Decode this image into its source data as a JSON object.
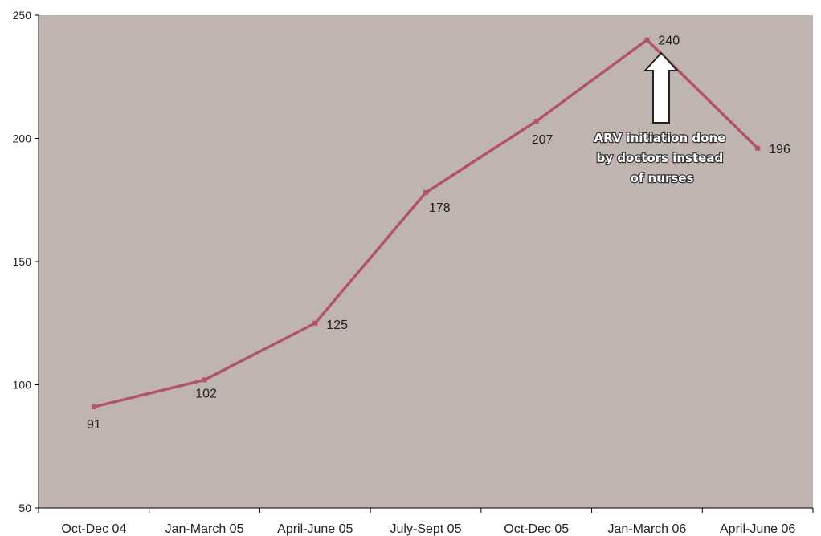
{
  "chart_data": {
    "type": "line",
    "categories": [
      "Oct-Dec 04",
      "Jan-March 05",
      "April-June 05",
      "July-Sept 05",
      "Oct-Dec 05",
      "Jan-March 06",
      "April-June 06"
    ],
    "series": [
      {
        "values": [
          91,
          102,
          125,
          178,
          207,
          240,
          196
        ],
        "color": "#b05566"
      }
    ],
    "ylim": [
      50,
      250
    ],
    "yticks": [
      "50",
      "100",
      "150",
      "200",
      "250"
    ],
    "data_labels": [
      "91",
      "102",
      "125",
      "178",
      "207",
      "240",
      "196"
    ],
    "annotation": {
      "lines": [
        "ARV initiation done",
        "by doctors instead",
        "of nurses"
      ],
      "points_to_category": "Jan-March 06"
    },
    "plot_background": "#c0b4b1",
    "grid": false,
    "legend": "none"
  }
}
